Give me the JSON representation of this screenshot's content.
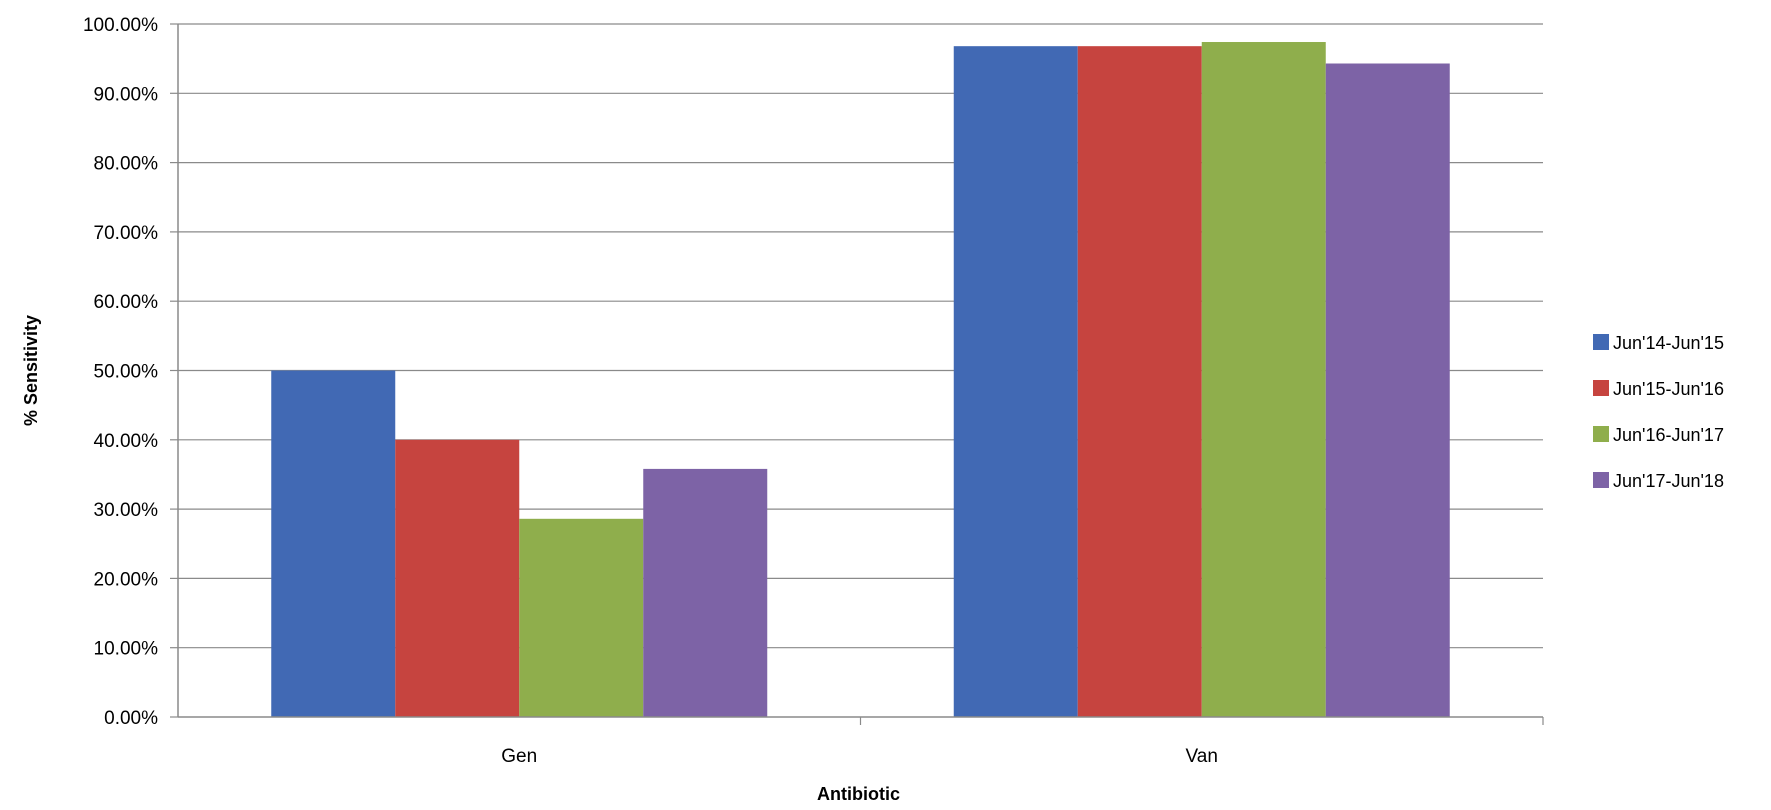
{
  "chart_data": {
    "type": "bar",
    "xlabel": "Antibiotic",
    "ylabel": "% Sensitivity",
    "ylim": [
      0,
      100
    ],
    "ytick_step": 10,
    "ytick_labels": [
      "0.00%",
      "10.00%",
      "20.00%",
      "30.00%",
      "40.00%",
      "50.00%",
      "60.00%",
      "70.00%",
      "80.00%",
      "90.00%",
      "100.00%"
    ],
    "categories": [
      "Gen",
      "Van"
    ],
    "grid": true,
    "legend_position": "right",
    "series": [
      {
        "name": "Jun'14-Jun'15",
        "color": "#4169b4",
        "values": [
          50.0,
          96.8
        ]
      },
      {
        "name": "Jun'15-Jun'16",
        "color": "#c6443f",
        "values": [
          40.0,
          96.8
        ]
      },
      {
        "name": "Jun'16-Jun'17",
        "color": "#8fae4c",
        "values": [
          28.6,
          97.4
        ]
      },
      {
        "name": "Jun'17-Jun'18",
        "color": "#7d63a6",
        "values": [
          35.8,
          94.3
        ]
      }
    ]
  }
}
